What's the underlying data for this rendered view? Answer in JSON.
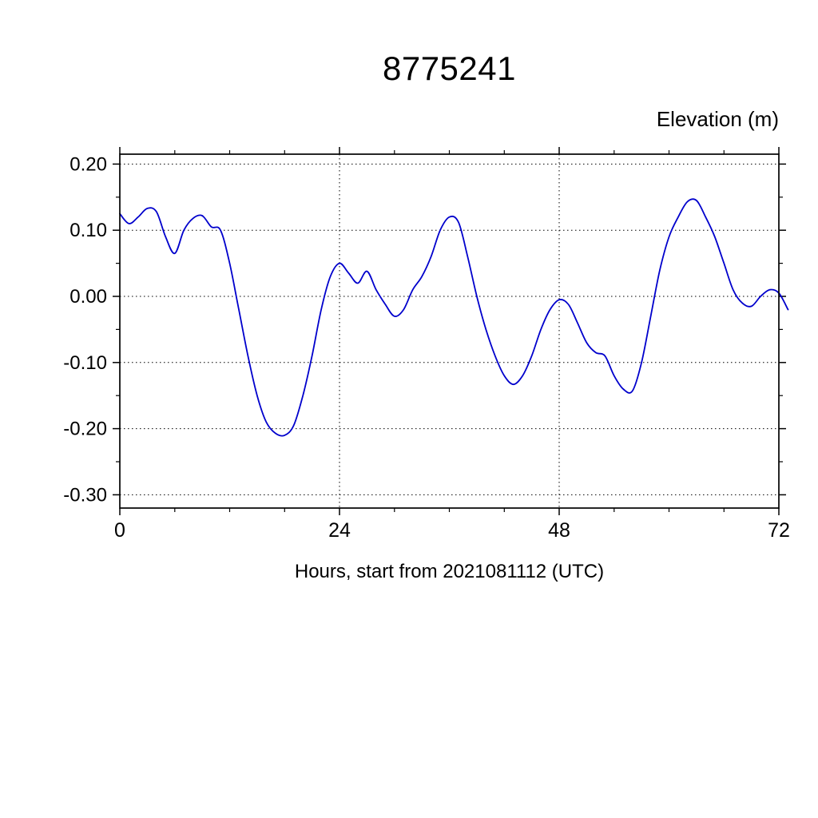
{
  "chart_data": {
    "type": "line",
    "title": "8775241",
    "ylabel": "Elevation (m)",
    "xlabel": "Hours, start from 2021081112 (UTC)",
    "xlim": [
      0,
      72
    ],
    "ylim": [
      -0.32,
      0.215
    ],
    "x_ticks": [
      0,
      24,
      48,
      72
    ],
    "x_tick_labels": [
      "0",
      "24",
      "48",
      "72"
    ],
    "x_minor_ticks": [
      6,
      12,
      18,
      30,
      36,
      42,
      54,
      60,
      66
    ],
    "x_grid": [
      24,
      48
    ],
    "y_ticks": [
      0.2,
      0.1,
      0.0,
      -0.1,
      -0.2,
      -0.3
    ],
    "y_tick_labels": [
      "0.20",
      "0.10",
      "0.00",
      "-0.10",
      "-0.20",
      "-0.30"
    ],
    "y_minor_ticks": [
      0.15,
      0.05,
      -0.05,
      -0.15,
      -0.25
    ],
    "grid": "dotted",
    "legend": "none",
    "line_color": "#0000cc",
    "series": [
      {
        "name": "elevation",
        "x_start": 0,
        "x_step": 1,
        "values": [
          0.125,
          0.11,
          0.12,
          0.133,
          0.128,
          0.09,
          0.065,
          0.1,
          0.118,
          0.122,
          0.105,
          0.1,
          0.05,
          -0.02,
          -0.09,
          -0.15,
          -0.19,
          -0.207,
          -0.21,
          -0.195,
          -0.15,
          -0.09,
          -0.02,
          0.03,
          0.05,
          0.035,
          0.02,
          0.038,
          0.01,
          -0.012,
          -0.03,
          -0.02,
          0.01,
          0.03,
          0.06,
          0.1,
          0.12,
          0.112,
          0.06,
          0.0,
          -0.05,
          -0.09,
          -0.12,
          -0.133,
          -0.12,
          -0.09,
          -0.05,
          -0.02,
          -0.005,
          -0.012,
          -0.04,
          -0.07,
          -0.085,
          -0.09,
          -0.12,
          -0.14,
          -0.143,
          -0.1,
          -0.03,
          0.04,
          0.09,
          0.12,
          0.143,
          0.145,
          0.12,
          0.09,
          0.05,
          0.01,
          -0.01,
          -0.015,
          0.0,
          0.01,
          0.005,
          -0.02
        ]
      }
    ]
  }
}
